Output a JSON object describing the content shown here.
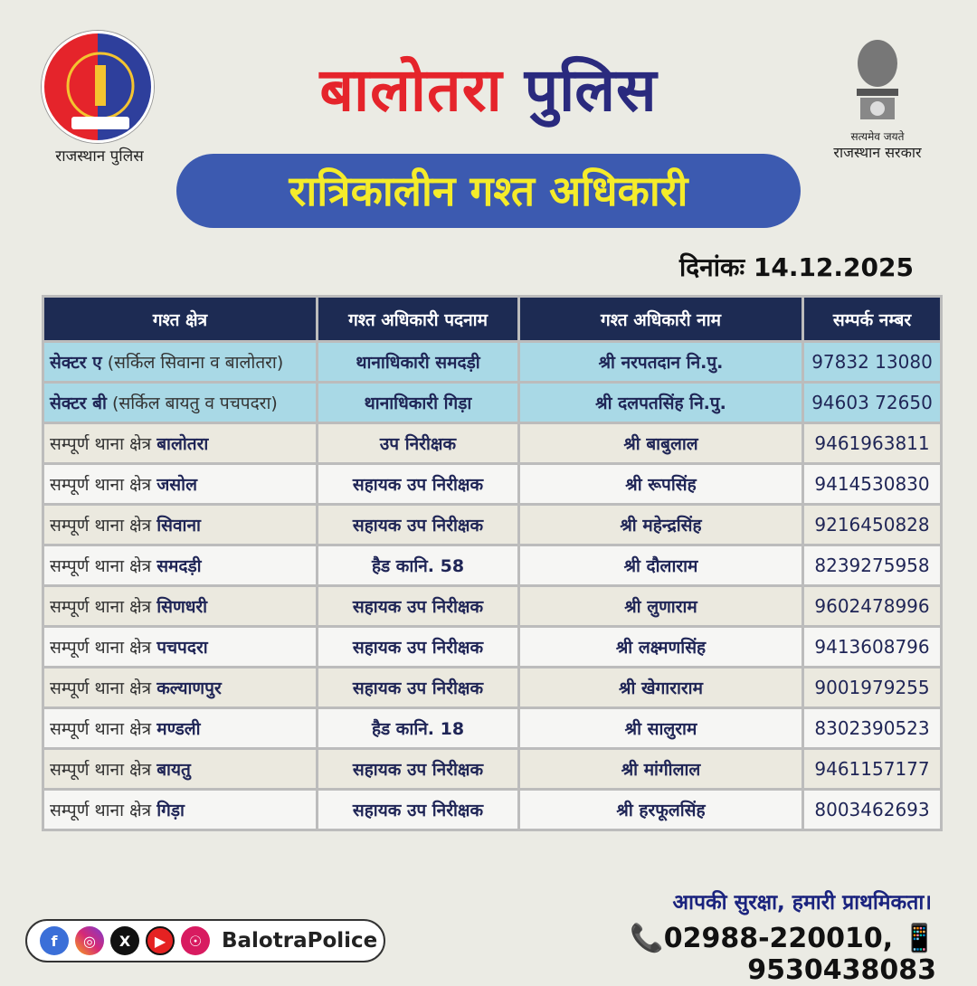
{
  "header": {
    "left_logo_caption": "राजस्थान पुलिस",
    "right_emblem_motto": "सत्यमेव जयते",
    "right_emblem_caption": "राजस्थान सरकार",
    "title_part1": "बालोतरा",
    "title_part2": "पुलिस",
    "banner": "रात्रिकालीन गश्त अधिकारी",
    "date_label": "दिनांकः 14.12.2025"
  },
  "table": {
    "columns": [
      "गश्त क्षेत्र",
      "गश्त अधिकारी पदनाम",
      "गश्त अधिकारी नाम",
      "सम्पर्क नम्बर"
    ],
    "sector_rows": [
      {
        "area_bold": "सेक्टर ए",
        "area_rest": " (सर्किल सिवाना व बालोतरा)",
        "designation": "थानाधिकारी समदड़ी",
        "name": "श्री नरपतदान नि.पु.",
        "phone": "97832 13080"
      },
      {
        "area_bold": "सेक्टर बी",
        "area_rest": " (सर्किल बायतु व पचपदरा)",
        "designation": "थानाधिकारी गिड़ा",
        "name": "श्री दलपतसिंह नि.पु.",
        "phone": "94603 72650"
      }
    ],
    "prefix": "सम्पूर्ण थाना क्षेत्र ",
    "rows": [
      {
        "station": "बालोतरा",
        "designation": "उप निरीक्षक",
        "name": "श्री बाबुलाल",
        "phone": "9461963811"
      },
      {
        "station": "जसोल",
        "designation": "सहायक उप निरीक्षक",
        "name": "श्री रूपसिंह",
        "phone": "9414530830"
      },
      {
        "station": "सिवाना",
        "designation": "सहायक उप निरीक्षक",
        "name": "श्री महेन्द्रसिंह",
        "phone": "9216450828"
      },
      {
        "station": "समदड़ी",
        "designation": "हैड कानि. 58",
        "name": "श्री दौलाराम",
        "phone": "8239275958"
      },
      {
        "station": "सिणधरी",
        "designation": "सहायक उप निरीक्षक",
        "name": "श्री लुणाराम",
        "phone": "9602478996"
      },
      {
        "station": "पचपदरा",
        "designation": "सहायक उप निरीक्षक",
        "name": "श्री लक्ष्मणसिंह",
        "phone": "9413608796"
      },
      {
        "station": "कल्याणपुर",
        "designation": "सहायक उप निरीक्षक",
        "name": "श्री खेगाराराम",
        "phone": "9001979255"
      },
      {
        "station": "मण्डली",
        "designation": "हैड कानि. 18",
        "name": "श्री सालुराम",
        "phone": "8302390523"
      },
      {
        "station": "बायतु",
        "designation": "सहायक उप निरीक्षक",
        "name": "श्री मांगीलाल",
        "phone": "9461157177"
      },
      {
        "station": "गिड़ा",
        "designation": "सहायक उप निरीक्षक",
        "name": "श्री हरफूलसिंह",
        "phone": "8003462693"
      }
    ]
  },
  "footer": {
    "slogan": "आपकी सुरक्षा, हमारी प्राथमिकता।",
    "contact": "📞02988-220010, 📱 9530438083",
    "social_handle": "BalotraPolice",
    "social_icons": [
      "facebook-icon",
      "instagram-icon",
      "x-icon",
      "youtube-icon",
      "koo-icon"
    ]
  },
  "colors": {
    "title_red": "#e5242b",
    "title_blue": "#2a2a7e",
    "banner_bg": "#3c5ab0",
    "banner_text": "#f5ec2a",
    "table_header": "#1d2b53",
    "sector_bg": "#a9d9e6"
  }
}
